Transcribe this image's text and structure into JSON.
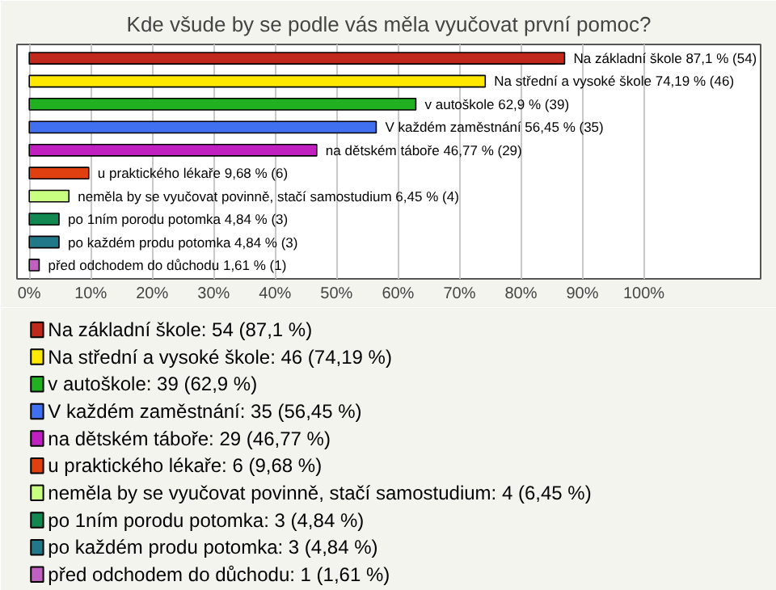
{
  "chart_data": {
    "type": "bar",
    "orientation": "horizontal",
    "title": "Kde všude by se podle vás měla vyučovat první pomoc?",
    "categories": [
      null,
      null,
      null,
      null,
      null,
      null,
      null,
      null,
      null,
      null
    ],
    "xlim": [
      -2,
      119
    ],
    "xticks": [
      {
        "value": 0,
        "label": "0%"
      },
      {
        "value": 10,
        "label": "10%"
      },
      {
        "value": 20,
        "label": "20%"
      },
      {
        "value": 30,
        "label": "30%"
      },
      {
        "value": 40,
        "label": "40%"
      },
      {
        "value": 50,
        "label": "50%"
      },
      {
        "value": 60,
        "label": "60%"
      },
      {
        "value": 70,
        "label": "70%"
      },
      {
        "value": 80,
        "label": "80%"
      },
      {
        "value": 90,
        "label": "90%"
      },
      {
        "value": 100,
        "label": "100%"
      }
    ],
    "grid": "x",
    "legend": "bottom",
    "series": [
      {
        "name": "Na základní škole: 54 (87,1 %)",
        "color": "#c0281c",
        "values": [
          87.1,
          null,
          null,
          null,
          null,
          null,
          null,
          null,
          null,
          null
        ],
        "value_labels": [
          "Na základní škole 87,1 % (54)",
          null,
          null,
          null,
          null,
          null,
          null,
          null,
          null,
          null
        ]
      },
      {
        "name": "Na střední a vysoké škole: 46 (74,19 %)",
        "color": "#ffe800",
        "values": [
          null,
          74.19,
          null,
          null,
          null,
          null,
          null,
          null,
          null,
          null
        ],
        "value_labels": [
          null,
          "Na střední a vysoké škole 74,19 % (46)",
          null,
          null,
          null,
          null,
          null,
          null,
          null,
          null
        ]
      },
      {
        "name": "v autoškole: 39 (62,9 %)",
        "color": "#20b020",
        "values": [
          null,
          null,
          62.9,
          null,
          null,
          null,
          null,
          null,
          null,
          null
        ],
        "value_labels": [
          null,
          null,
          "v autoškole 62,9 % (39)",
          null,
          null,
          null,
          null,
          null,
          null,
          null
        ]
      },
      {
        "name": "V každém zaměstnání: 35 (56,45 %)",
        "color": "#4070f0",
        "values": [
          null,
          null,
          null,
          56.45,
          null,
          null,
          null,
          null,
          null,
          null
        ],
        "value_labels": [
          null,
          null,
          null,
          "V každém zaměstnání 56,45 % (35)",
          null,
          null,
          null,
          null,
          null,
          null
        ]
      },
      {
        "name": "na dětském táboře: 29 (46,77 %)",
        "color": "#c020c0",
        "values": [
          null,
          null,
          null,
          null,
          46.77,
          null,
          null,
          null,
          null,
          null
        ],
        "value_labels": [
          null,
          null,
          null,
          null,
          "na dětském táboře 46,77 % (29)",
          null,
          null,
          null,
          null,
          null
        ]
      },
      {
        "name": "u praktického lékaře: 6 (9,68 %)",
        "color": "#e04010",
        "values": [
          null,
          null,
          null,
          null,
          null,
          9.68,
          null,
          null,
          null,
          null
        ],
        "value_labels": [
          null,
          null,
          null,
          null,
          null,
          "u praktického lékaře 9,68 % (6)",
          null,
          null,
          null,
          null
        ]
      },
      {
        "name": "neměla by se vyučovat povinně, stačí samostudium: 4 (6,45 %)",
        "color": "#c8ff80",
        "values": [
          null,
          null,
          null,
          null,
          null,
          null,
          6.45,
          null,
          null,
          null
        ],
        "value_labels": [
          null,
          null,
          null,
          null,
          null,
          null,
          "neměla by se vyučovat povinně, stačí samostudium 6,45 % (4)",
          null,
          null,
          null
        ]
      },
      {
        "name": "po 1ním porodu potomka: 3 (4,84 %)",
        "color": "#108850",
        "values": [
          null,
          null,
          null,
          null,
          null,
          null,
          null,
          4.84,
          null,
          null
        ],
        "value_labels": [
          null,
          null,
          null,
          null,
          null,
          null,
          null,
          "po 1ním porodu potomka 4,84 % (3)",
          null,
          null
        ]
      },
      {
        "name": "po každém produ potomka: 3 (4,84 %)",
        "color": "#207888",
        "values": [
          null,
          null,
          null,
          null,
          null,
          null,
          null,
          null,
          4.84,
          null
        ],
        "value_labels": [
          null,
          null,
          null,
          null,
          null,
          null,
          null,
          null,
          "po každém produ potomka 4,84 % (3)",
          null
        ]
      },
      {
        "name": "před odchodem do důchodu: 1 (1,61 %)",
        "color": "#c060c0",
        "values": [
          null,
          null,
          null,
          null,
          null,
          null,
          null,
          null,
          null,
          1.61
        ],
        "value_labels": [
          null,
          null,
          null,
          null,
          null,
          null,
          null,
          null,
          null,
          "před odchodem do důchodu 1,61 % (1)"
        ]
      }
    ]
  }
}
